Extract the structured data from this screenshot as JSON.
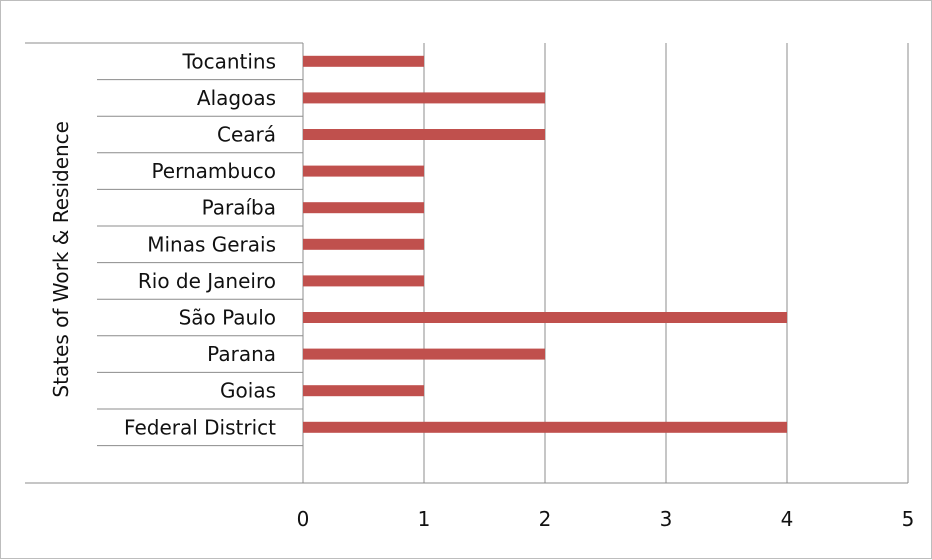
{
  "chart_data": {
    "type": "bar",
    "orientation": "horizontal",
    "categories": [
      "Tocantins",
      "Alagoas",
      "Ceará",
      "Pernambuco",
      "Paraíba",
      "Minas Gerais",
      "Rio de Janeiro",
      "São Paulo",
      "Parana",
      "Goias",
      "Federal District"
    ],
    "values": [
      1,
      2,
      2,
      1,
      1,
      1,
      1,
      4,
      2,
      1,
      4
    ],
    "xlabel": "",
    "ylabel": "States of Work & Residence",
    "xlim": [
      0,
      5
    ],
    "x_ticks": [
      "0",
      "1",
      "2",
      "3",
      "4",
      "5"
    ],
    "grid": "vertical",
    "legend": "none",
    "bar_color": "#c0504d",
    "grid_color": "#8c8c8c"
  }
}
